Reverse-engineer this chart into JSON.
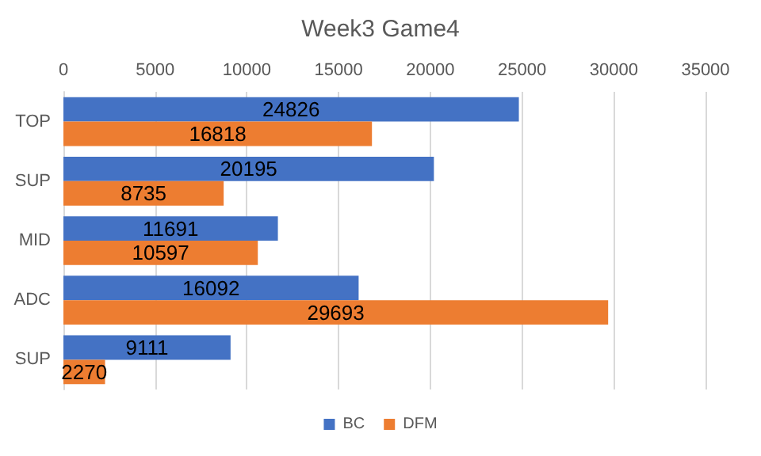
{
  "chart_data": {
    "type": "bar",
    "orientation": "horizontal",
    "title": "Week3 Game4",
    "categories": [
      "TOP",
      "SUP",
      "MID",
      "ADC",
      "SUP"
    ],
    "series": [
      {
        "name": "BC",
        "color": "#4472c4",
        "values": [
          24826,
          20195,
          11691,
          16092,
          9111
        ]
      },
      {
        "name": "DFM",
        "color": "#ed7d31",
        "values": [
          16818,
          8735,
          10597,
          29693,
          2270
        ]
      }
    ],
    "xlim": [
      0,
      35000
    ],
    "xticks": [
      0,
      5000,
      10000,
      15000,
      20000,
      25000,
      30000,
      35000
    ],
    "grid": "x",
    "legend": "bottom",
    "data_labels": true
  }
}
